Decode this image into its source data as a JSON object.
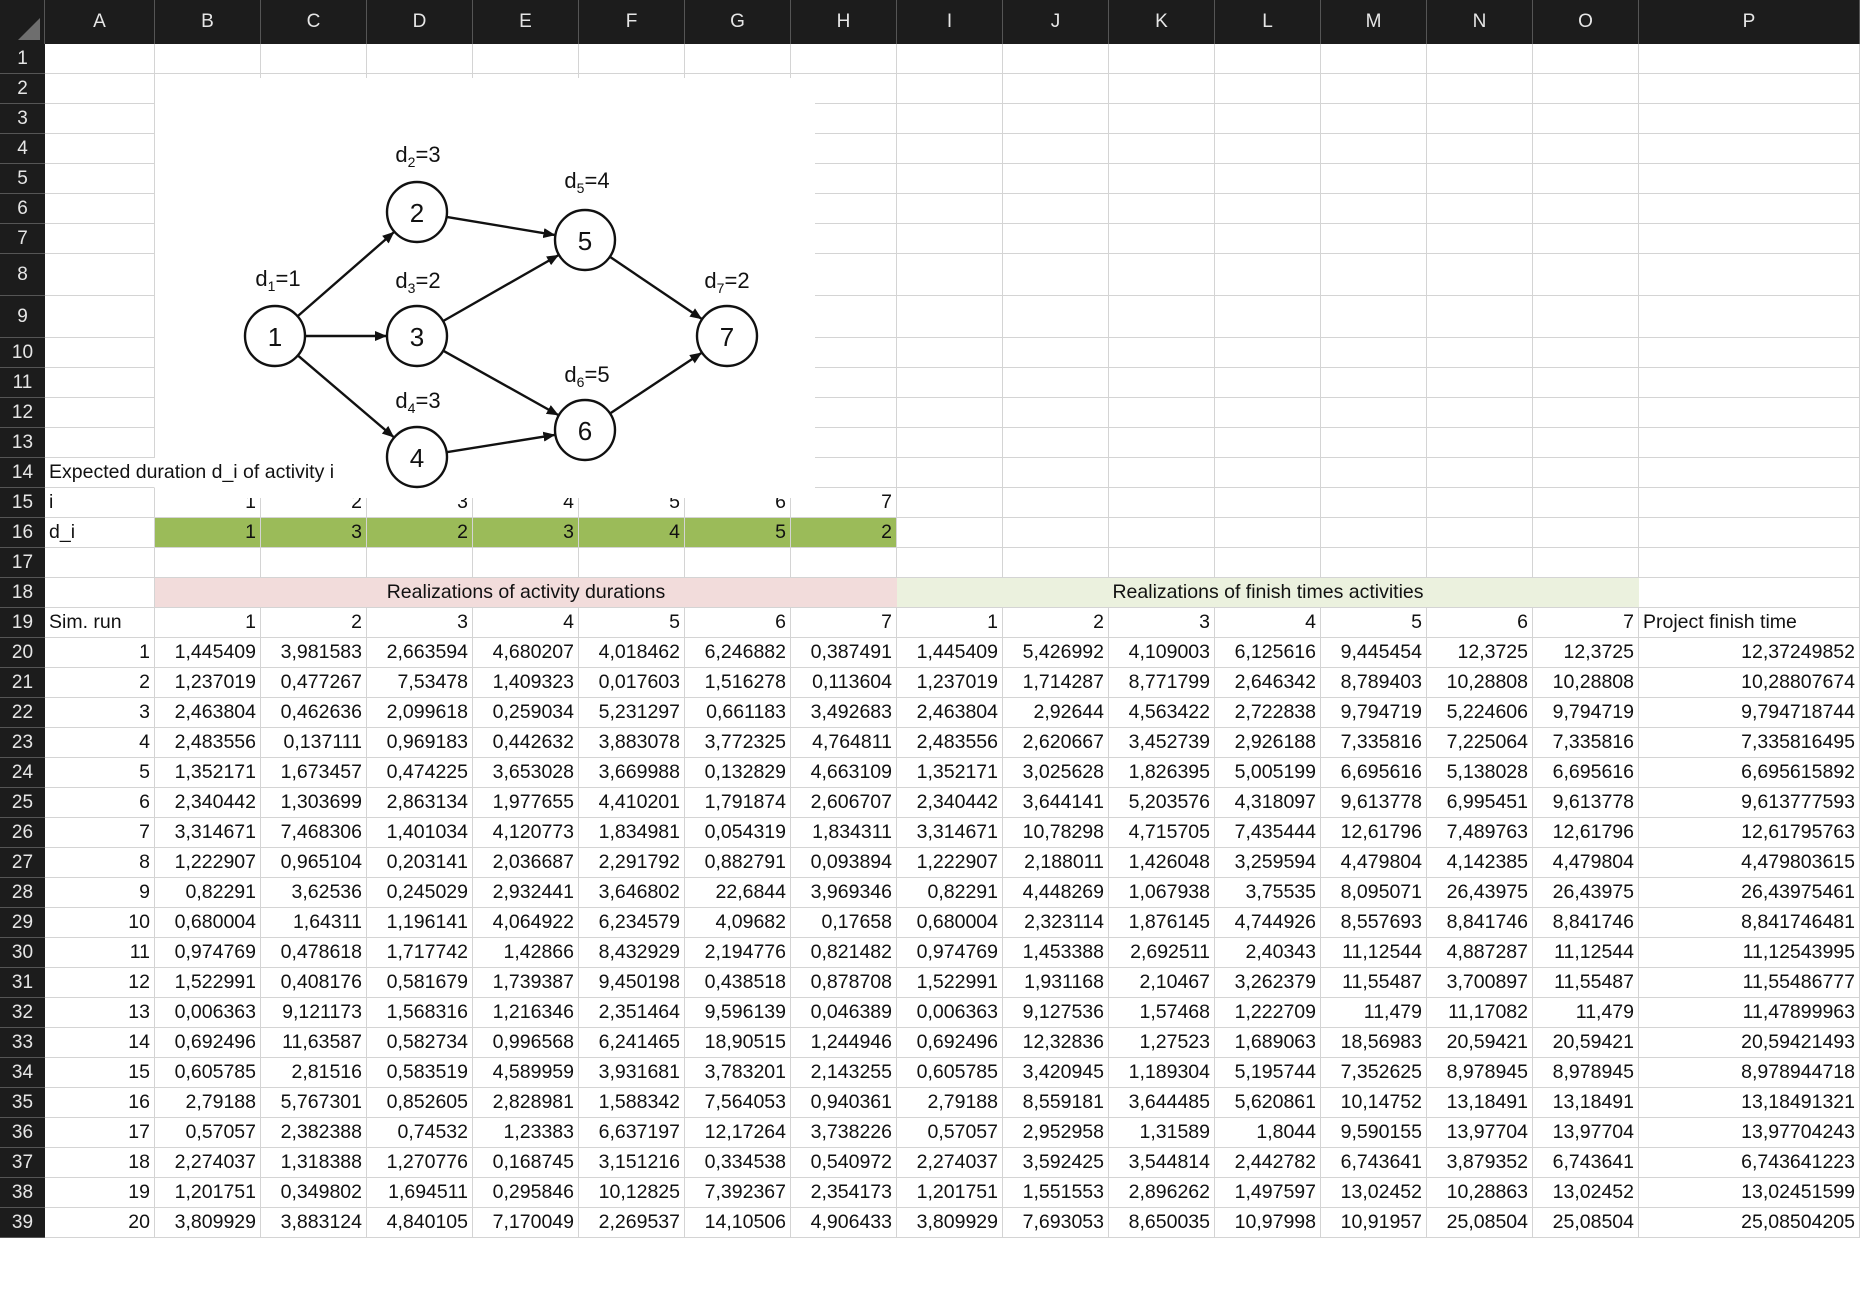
{
  "columns": [
    "A",
    "B",
    "C",
    "D",
    "E",
    "F",
    "G",
    "H",
    "I",
    "J",
    "K",
    "L",
    "M",
    "N",
    "O",
    "P"
  ],
  "rows": [
    "1",
    "2",
    "3",
    "4",
    "5",
    "6",
    "7",
    "8",
    "9",
    "10",
    "11",
    "12",
    "13",
    "14",
    "15",
    "16",
    "17",
    "18",
    "19",
    "20",
    "21",
    "22",
    "23",
    "24",
    "25",
    "26",
    "27",
    "28",
    "29",
    "30",
    "31",
    "32",
    "33",
    "34",
    "35",
    "36",
    "37",
    "38",
    "39"
  ],
  "diagram": {
    "nodes": [
      {
        "id": "1",
        "label": "1"
      },
      {
        "id": "2",
        "label": "2"
      },
      {
        "id": "3",
        "label": "3"
      },
      {
        "id": "4",
        "label": "4"
      },
      {
        "id": "5",
        "label": "5"
      },
      {
        "id": "6",
        "label": "6"
      },
      {
        "id": "7",
        "label": "7"
      }
    ],
    "edges": [
      [
        "1",
        "2"
      ],
      [
        "1",
        "3"
      ],
      [
        "1",
        "4"
      ],
      [
        "2",
        "5"
      ],
      [
        "3",
        "5"
      ],
      [
        "3",
        "6"
      ],
      [
        "4",
        "6"
      ],
      [
        "5",
        "7"
      ],
      [
        "6",
        "7"
      ]
    ],
    "duration_labels": [
      {
        "node": "1",
        "sub": "1",
        "value": "1"
      },
      {
        "node": "2",
        "sub": "2",
        "value": "3"
      },
      {
        "node": "3",
        "sub": "3",
        "value": "2"
      },
      {
        "node": "4",
        "sub": "4",
        "value": "3"
      },
      {
        "node": "5",
        "sub": "5",
        "value": "4"
      },
      {
        "node": "6",
        "sub": "6",
        "value": "5"
      },
      {
        "node": "7",
        "sub": "7",
        "value": "2"
      }
    ]
  },
  "expected_title": "Expected duration d_i of activity i",
  "i_label": "i",
  "i_values": [
    "1",
    "2",
    "3",
    "4",
    "5",
    "6",
    "7"
  ],
  "di_label": "d_i",
  "di_values": [
    "1",
    "3",
    "2",
    "3",
    "4",
    "5",
    "2"
  ],
  "banner_durations": "Realizations of activity durations",
  "banner_finish": "Realizations of finish times activities",
  "header_row": [
    "Sim. run",
    "1",
    "2",
    "3",
    "4",
    "5",
    "6",
    "7",
    "1",
    "2",
    "3",
    "4",
    "5",
    "6",
    "7",
    "Project finish time"
  ],
  "colors": {
    "green": "#9bbb59",
    "pink": "#f2dcdb",
    "lightgreen": "#ebf1de",
    "header_bg": "#1c1c1c"
  },
  "sim_rows": [
    [
      "1",
      "1,445409",
      "3,981583",
      "2,663594",
      "4,680207",
      "4,018462",
      "6,246882",
      "0,387491",
      "1,445409",
      "5,426992",
      "4,109003",
      "6,125616",
      "9,445454",
      "12,3725",
      "12,3725",
      "12,37249852"
    ],
    [
      "2",
      "1,237019",
      "0,477267",
      "7,53478",
      "1,409323",
      "0,017603",
      "1,516278",
      "0,113604",
      "1,237019",
      "1,714287",
      "8,771799",
      "2,646342",
      "8,789403",
      "10,28808",
      "10,28808",
      "10,28807674"
    ],
    [
      "3",
      "2,463804",
      "0,462636",
      "2,099618",
      "0,259034",
      "5,231297",
      "0,661183",
      "3,492683",
      "2,463804",
      "2,92644",
      "4,563422",
      "2,722838",
      "9,794719",
      "5,224606",
      "9,794719",
      "9,794718744"
    ],
    [
      "4",
      "2,483556",
      "0,137111",
      "0,969183",
      "0,442632",
      "3,883078",
      "3,772325",
      "4,764811",
      "2,483556",
      "2,620667",
      "3,452739",
      "2,926188",
      "7,335816",
      "7,225064",
      "7,335816",
      "7,335816495"
    ],
    [
      "5",
      "1,352171",
      "1,673457",
      "0,474225",
      "3,653028",
      "3,669988",
      "0,132829",
      "4,663109",
      "1,352171",
      "3,025628",
      "1,826395",
      "5,005199",
      "6,695616",
      "5,138028",
      "6,695616",
      "6,695615892"
    ],
    [
      "6",
      "2,340442",
      "1,303699",
      "2,863134",
      "1,977655",
      "4,410201",
      "1,791874",
      "2,606707",
      "2,340442",
      "3,644141",
      "5,203576",
      "4,318097",
      "9,613778",
      "6,995451",
      "9,613778",
      "9,613777593"
    ],
    [
      "7",
      "3,314671",
      "7,468306",
      "1,401034",
      "4,120773",
      "1,834981",
      "0,054319",
      "1,834311",
      "3,314671",
      "10,78298",
      "4,715705",
      "7,435444",
      "12,61796",
      "7,489763",
      "12,61796",
      "12,61795763"
    ],
    [
      "8",
      "1,222907",
      "0,965104",
      "0,203141",
      "2,036687",
      "2,291792",
      "0,882791",
      "0,093894",
      "1,222907",
      "2,188011",
      "1,426048",
      "3,259594",
      "4,479804",
      "4,142385",
      "4,479804",
      "4,479803615"
    ],
    [
      "9",
      "0,82291",
      "3,62536",
      "0,245029",
      "2,932441",
      "3,646802",
      "22,6844",
      "3,969346",
      "0,82291",
      "4,448269",
      "1,067938",
      "3,75535",
      "8,095071",
      "26,43975",
      "26,43975",
      "26,43975461"
    ],
    [
      "10",
      "0,680004",
      "1,64311",
      "1,196141",
      "4,064922",
      "6,234579",
      "4,09682",
      "0,17658",
      "0,680004",
      "2,323114",
      "1,876145",
      "4,744926",
      "8,557693",
      "8,841746",
      "8,841746",
      "8,841746481"
    ],
    [
      "11",
      "0,974769",
      "0,478618",
      "1,717742",
      "1,42866",
      "8,432929",
      "2,194776",
      "0,821482",
      "0,974769",
      "1,453388",
      "2,692511",
      "2,40343",
      "11,12544",
      "4,887287",
      "11,12544",
      "11,12543995"
    ],
    [
      "12",
      "1,522991",
      "0,408176",
      "0,581679",
      "1,739387",
      "9,450198",
      "0,438518",
      "0,878708",
      "1,522991",
      "1,931168",
      "2,10467",
      "3,262379",
      "11,55487",
      "3,700897",
      "11,55487",
      "11,55486777"
    ],
    [
      "13",
      "0,006363",
      "9,121173",
      "1,568316",
      "1,216346",
      "2,351464",
      "9,596139",
      "0,046389",
      "0,006363",
      "9,127536",
      "1,57468",
      "1,222709",
      "11,479",
      "11,17082",
      "11,479",
      "11,47899963"
    ],
    [
      "14",
      "0,692496",
      "11,63587",
      "0,582734",
      "0,996568",
      "6,241465",
      "18,90515",
      "1,244946",
      "0,692496",
      "12,32836",
      "1,27523",
      "1,689063",
      "18,56983",
      "20,59421",
      "20,59421",
      "20,59421493"
    ],
    [
      "15",
      "0,605785",
      "2,81516",
      "0,583519",
      "4,589959",
      "3,931681",
      "3,783201",
      "2,143255",
      "0,605785",
      "3,420945",
      "1,189304",
      "5,195744",
      "7,352625",
      "8,978945",
      "8,978945",
      "8,978944718"
    ],
    [
      "16",
      "2,79188",
      "5,767301",
      "0,852605",
      "2,828981",
      "1,588342",
      "7,564053",
      "0,940361",
      "2,79188",
      "8,559181",
      "3,644485",
      "5,620861",
      "10,14752",
      "13,18491",
      "13,18491",
      "13,18491321"
    ],
    [
      "17",
      "0,57057",
      "2,382388",
      "0,74532",
      "1,23383",
      "6,637197",
      "12,17264",
      "3,738226",
      "0,57057",
      "2,952958",
      "1,31589",
      "1,8044",
      "9,590155",
      "13,97704",
      "13,97704",
      "13,97704243"
    ],
    [
      "18",
      "2,274037",
      "1,318388",
      "1,270776",
      "0,168745",
      "3,151216",
      "0,334538",
      "0,540972",
      "2,274037",
      "3,592425",
      "3,544814",
      "2,442782",
      "6,743641",
      "3,879352",
      "6,743641",
      "6,743641223"
    ],
    [
      "19",
      "1,201751",
      "0,349802",
      "1,694511",
      "0,295846",
      "10,12825",
      "7,392367",
      "2,354173",
      "1,201751",
      "1,551553",
      "2,896262",
      "1,497597",
      "13,02452",
      "10,28863",
      "13,02452",
      "13,02451599"
    ],
    [
      "20",
      "3,809929",
      "3,883124",
      "4,840105",
      "7,170049",
      "2,269537",
      "14,10506",
      "4,906433",
      "3,809929",
      "7,693053",
      "8,650035",
      "10,97998",
      "10,91957",
      "25,08504",
      "25,08504",
      "25,08504205"
    ]
  ]
}
